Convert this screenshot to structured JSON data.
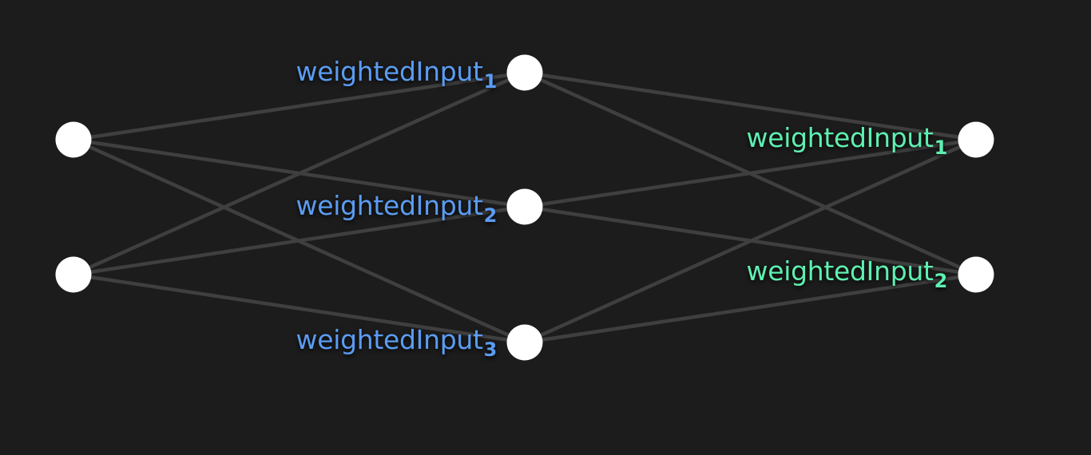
{
  "colors": {
    "background": "#1c1c1c",
    "edge": "#3f3f3f",
    "node": "#ffffff",
    "hidden_label": "#5b9cf2",
    "output_label": "#5ef0b0"
  },
  "layers": [
    {
      "name": "input",
      "nodes": 2
    },
    {
      "name": "hidden",
      "nodes": 3
    },
    {
      "name": "output",
      "nodes": 2
    }
  ],
  "labels": {
    "hidden": [
      {
        "text": "weightedInput",
        "sub": "1"
      },
      {
        "text": "weightedInput",
        "sub": "2"
      },
      {
        "text": "weightedInput",
        "sub": "3"
      }
    ],
    "output": [
      {
        "text": "weightedInput",
        "sub": "1"
      },
      {
        "text": "weightedInput",
        "sub": "2"
      }
    ]
  }
}
